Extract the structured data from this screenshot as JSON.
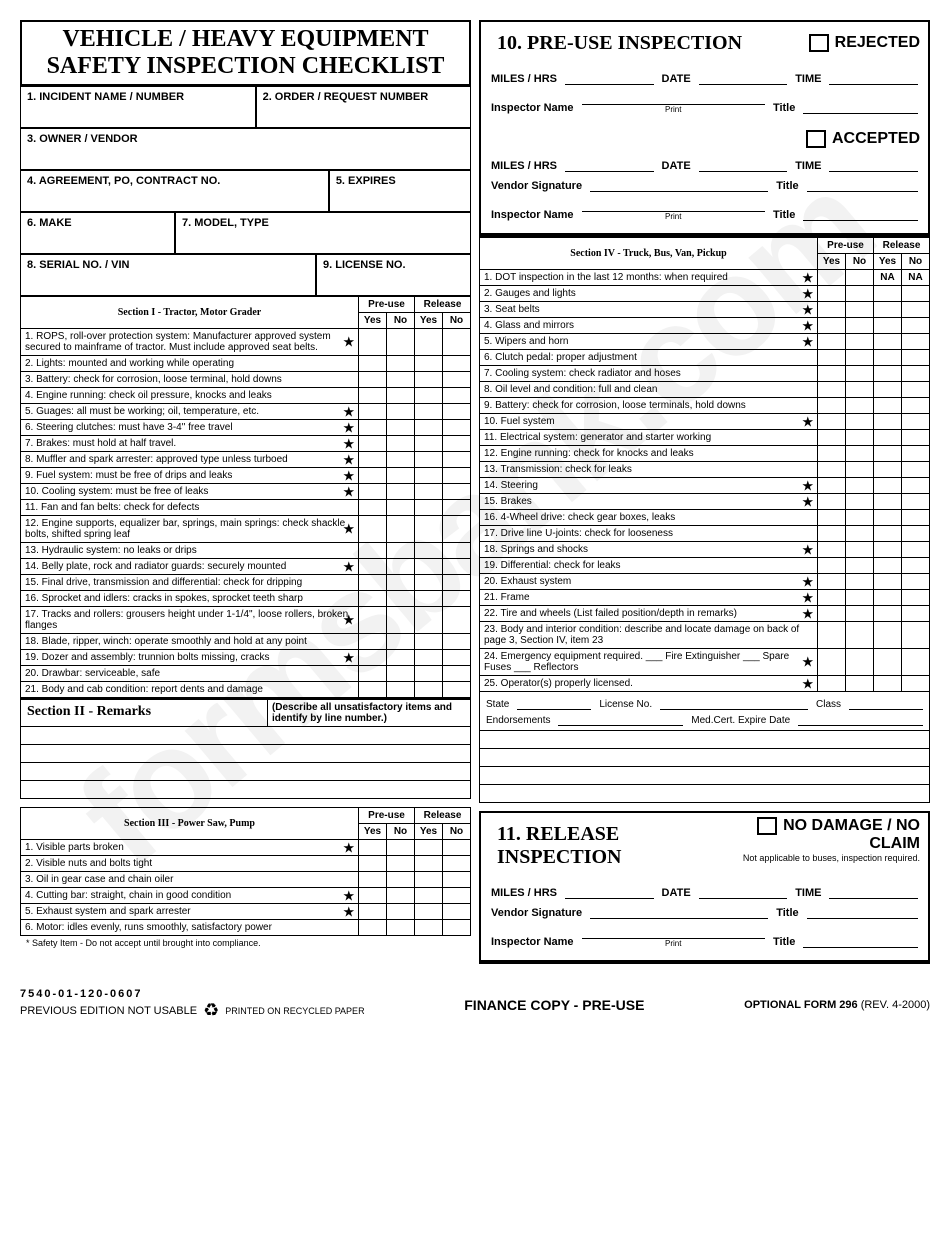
{
  "watermark": "formsbank.com",
  "left": {
    "title_l1": "VEHICLE / HEAVY EQUIPMENT",
    "title_l2": "SAFETY INSPECTION CHECKLIST",
    "f1": "1.  INCIDENT NAME / NUMBER",
    "f2": "2.  ORDER / REQUEST NUMBER",
    "f3": "3.  OWNER / VENDOR",
    "f4": "4.  AGREEMENT, PO, CONTRACT NO.",
    "f5": "5.  EXPIRES",
    "f6": "6.  MAKE",
    "f7": "7.  MODEL, TYPE",
    "f8": "8.  SERIAL NO. / VIN",
    "f9": "9. LICENSE NO."
  },
  "s1": {
    "title": "Section I - Tractor, Motor Grader",
    "preuse": "Pre-use",
    "release": "Release",
    "yes": "Yes",
    "no": "No",
    "rows": [
      {
        "t": "1.  ROPS, roll-over protection system: Manufacturer approved system secured to mainframe of tractor. Must include approved seat belts.",
        "s": true
      },
      {
        "t": "2.  Lights: mounted and working while operating",
        "s": false
      },
      {
        "t": "3.  Battery: check for corrosion, loose terminal, hold downs",
        "s": false
      },
      {
        "t": "4.  Engine running: check oil pressure, knocks and leaks",
        "s": false
      },
      {
        "t": "5.  Guages: all must be working; oil, temperature, etc.",
        "s": true
      },
      {
        "t": "6.  Steering clutches: must have 3-4\" free travel",
        "s": true
      },
      {
        "t": "7.  Brakes: must hold at half travel.",
        "s": true
      },
      {
        "t": "8.  Muffler and spark arrester: approved type unless turboed",
        "s": true
      },
      {
        "t": "9.  Fuel system: must be free of drips and leaks",
        "s": true
      },
      {
        "t": "10. Cooling system: must be free of leaks",
        "s": true
      },
      {
        "t": "11. Fan and fan belts: check for defects",
        "s": false
      },
      {
        "t": "12. Engine supports, equalizer bar, springs, main springs: check shackle bolts, shifted spring leaf",
        "s": true
      },
      {
        "t": "13. Hydraulic system: no leaks or drips",
        "s": false
      },
      {
        "t": "14. Belly plate, rock and radiator guards: securely mounted",
        "s": true
      },
      {
        "t": "15. Final drive, transmission and differential: check for dripping",
        "s": false
      },
      {
        "t": "16. Sprocket and idlers: cracks in spokes, sprocket teeth sharp",
        "s": false
      },
      {
        "t": "17. Tracks and rollers: grousers height under 1-1/4\", loose rollers, broken flanges",
        "s": true
      },
      {
        "t": "18. Blade, ripper, winch: operate smoothly and hold at any point",
        "s": false
      },
      {
        "t": "19. Dozer and assembly: trunnion bolts missing, cracks",
        "s": true
      },
      {
        "t": "20. Drawbar: serviceable, safe",
        "s": false
      },
      {
        "t": "21. Body and cab condition: report dents and damage",
        "s": false
      }
    ]
  },
  "s2": {
    "title": "Section II - Remarks",
    "desc": "(Describe all unsatisfactory items and identify by line number.)"
  },
  "s3": {
    "title": "Section III - Power Saw, Pump",
    "rows": [
      {
        "t": "1.  Visible parts broken",
        "s": true
      },
      {
        "t": "2.  Visible nuts and bolts tight",
        "s": false
      },
      {
        "t": "3.  Oil in gear case and chain oiler",
        "s": false
      },
      {
        "t": "4.  Cutting bar: straight, chain in good condition",
        "s": true
      },
      {
        "t": "5.  Exhaust system and spark arrester",
        "s": true
      },
      {
        "t": "6.  Motor: idles evenly, runs smoothly, satisfactory power",
        "s": false
      }
    ]
  },
  "footnote": "* Safety Item - Do not accept until brought into compliance.",
  "s10": {
    "title": "10. PRE-USE INSPECTION",
    "rejected": "REJECTED",
    "accepted": "ACCEPTED",
    "miles": "MILES / HRS",
    "date": "DATE",
    "time": "TIME",
    "insp": "Inspector Name",
    "vendor": "Vendor Signature",
    "titlelbl": "Title",
    "print": "Print"
  },
  "s4": {
    "title": "Section IV - Truck, Bus, Van, Pickup",
    "rows": [
      {
        "t": "1.  DOT  inspection in the last 12 months: when required",
        "s": true,
        "na": true
      },
      {
        "t": "2.  Gauges and lights",
        "s": true
      },
      {
        "t": "3.  Seat belts",
        "s": true
      },
      {
        "t": "4.  Glass and mirrors",
        "s": true
      },
      {
        "t": "5.  Wipers and horn",
        "s": true
      },
      {
        "t": "6.  Clutch pedal: proper adjustment",
        "s": false
      },
      {
        "t": "7.  Cooling system: check radiator and hoses",
        "s": false
      },
      {
        "t": "8.  Oil level and condition: full and clean",
        "s": false
      },
      {
        "t": "9.  Battery: check for corrosion, loose terminals, hold downs",
        "s": false
      },
      {
        "t": "10. Fuel system",
        "s": true
      },
      {
        "t": "11. Electrical system: generator and starter working",
        "s": false
      },
      {
        "t": "12. Engine running: check for knocks and leaks",
        "s": false
      },
      {
        "t": "13. Transmission: check for leaks",
        "s": false
      },
      {
        "t": "14. Steering",
        "s": true
      },
      {
        "t": "15. Brakes",
        "s": true
      },
      {
        "t": "16. 4-Wheel drive: check gear boxes, leaks",
        "s": false
      },
      {
        "t": "17. Drive line U-joints: check for looseness",
        "s": false
      },
      {
        "t": "18. Springs and shocks",
        "s": true
      },
      {
        "t": "19. Differential: check for leaks",
        "s": false
      },
      {
        "t": "20. Exhaust system",
        "s": true
      },
      {
        "t": "21. Frame",
        "s": true
      },
      {
        "t": "22. Tire and wheels (List failed position/depth in remarks)",
        "s": true
      },
      {
        "t": "23. Body and interior condition: describe and locate damage on back of page 3, Section IV, item 23",
        "s": false
      },
      {
        "t": "24. Emergency equipment required.\n___ Fire Extinguisher ___ Spare Fuses ___ Reflectors",
        "s": true
      },
      {
        "t": "25. Operator(s) properly licensed.",
        "s": true
      }
    ],
    "extra": {
      "state": "State",
      "license": "License No.",
      "class": "Class",
      "endorse": "Endorsements",
      "med": "Med.Cert. Expire Date"
    }
  },
  "s11": {
    "title": "11. RELEASE INSPECTION",
    "nodamage": "NO DAMAGE / NO CLAIM",
    "sub": "Not applicable to buses, inspection required."
  },
  "footer": {
    "num": "7540-01-120-0607",
    "prev": "PREVIOUS EDITION NOT USABLE",
    "recycle": "PRINTED ON RECYCLED PAPER",
    "center": "FINANCE COPY - PRE-USE",
    "right_a": "OPTIONAL FORM 296",
    "right_b": " (REV. 4-2000)"
  },
  "na": "NA"
}
